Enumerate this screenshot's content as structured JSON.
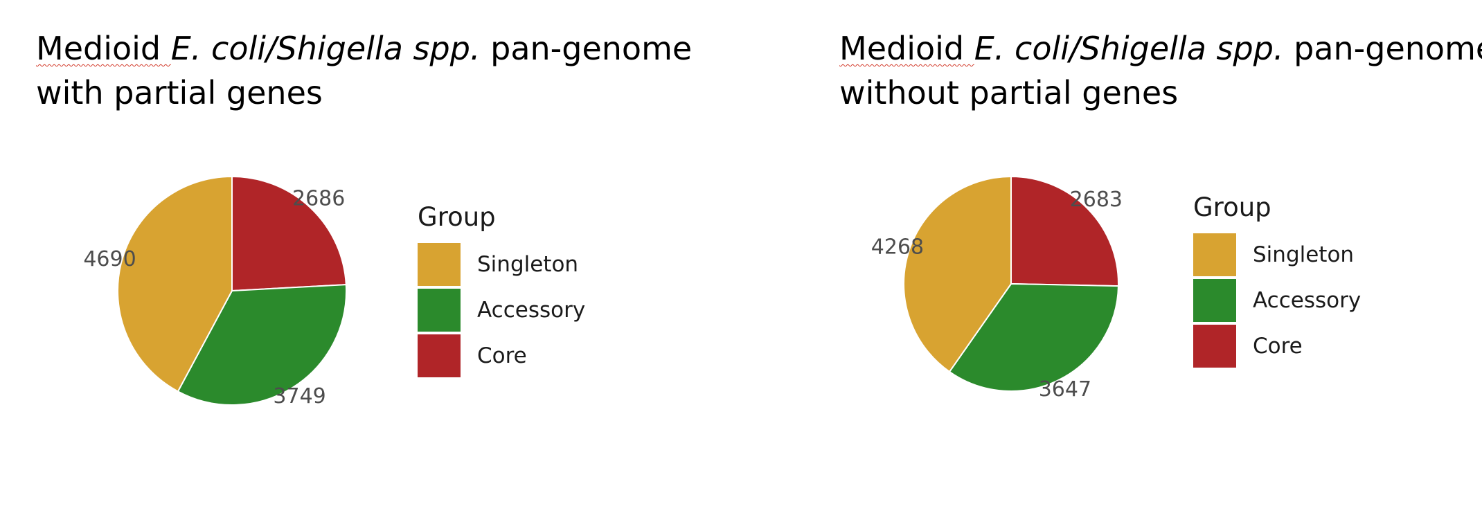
{
  "chart_data": [
    {
      "type": "pie",
      "title": {
        "prefix": "Medioid ",
        "italic": "E. coli/Shigella spp.",
        "line1_suffix": " pan-genome",
        "line2": "with partial genes"
      },
      "legend": {
        "title": "Group",
        "placement": "right",
        "entries": [
          "Singleton",
          "Accessory",
          "Core"
        ]
      },
      "slices": [
        {
          "label": "Core",
          "value": 2686,
          "value_label": "2686",
          "color": "#b02528"
        },
        {
          "label": "Accessory",
          "value": 3749,
          "value_label": "3749",
          "color": "#2b8a2c"
        },
        {
          "label": "Singleton",
          "value": 4690,
          "value_label": "4690",
          "color": "#d8a331"
        }
      ]
    },
    {
      "type": "pie",
      "title": {
        "prefix": "Medioid ",
        "italic": "E. coli/Shigella spp.",
        "line1_suffix": " pan-genome",
        "line2": "without partial genes"
      },
      "legend": {
        "title": "Group",
        "placement": "right",
        "entries": [
          "Singleton",
          "Accessory",
          "Core"
        ]
      },
      "slices": [
        {
          "label": "Core",
          "value": 2683,
          "value_label": "2683",
          "color": "#b02528"
        },
        {
          "label": "Accessory",
          "value": 3647,
          "value_label": "3647",
          "color": "#2b8a2c"
        },
        {
          "label": "Singleton",
          "value": 4268,
          "value_label": "4268",
          "color": "#d8a331"
        }
      ]
    }
  ]
}
